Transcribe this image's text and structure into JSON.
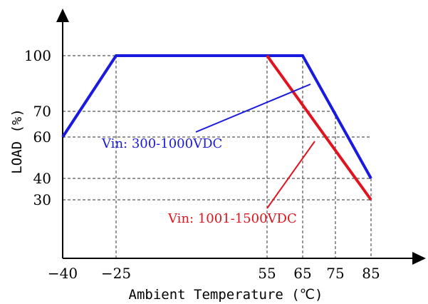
{
  "chart_data": {
    "type": "line",
    "title": "",
    "xlabel": "Ambient Temperature (℃)",
    "ylabel": "LOAD (%)",
    "x_ticks": [
      -40,
      -25,
      55,
      65,
      75,
      85
    ],
    "x_tick_labels": [
      "-40",
      "-25",
      "55",
      "65",
      "75",
      "85"
    ],
    "y_ticks": [
      30,
      40,
      60,
      70,
      100
    ],
    "y_tick_labels": [
      "30",
      "40",
      "60",
      "70",
      "100"
    ],
    "xlim": [
      -40,
      85
    ],
    "ylim": [
      0,
      100
    ],
    "grid": "dashed guide lines at tick values",
    "legend": "inline annotations with pointer lines",
    "series": [
      {
        "name": "Vin: 300-1000VDC",
        "color": "#1a1adf",
        "x": [
          -40,
          -25,
          65,
          85
        ],
        "y": [
          60,
          100,
          100,
          40
        ]
      },
      {
        "name": "Vin: 1001-1500VDC",
        "color": "#e0141e",
        "x": [
          55,
          85
        ],
        "y": [
          100,
          30
        ]
      }
    ]
  }
}
